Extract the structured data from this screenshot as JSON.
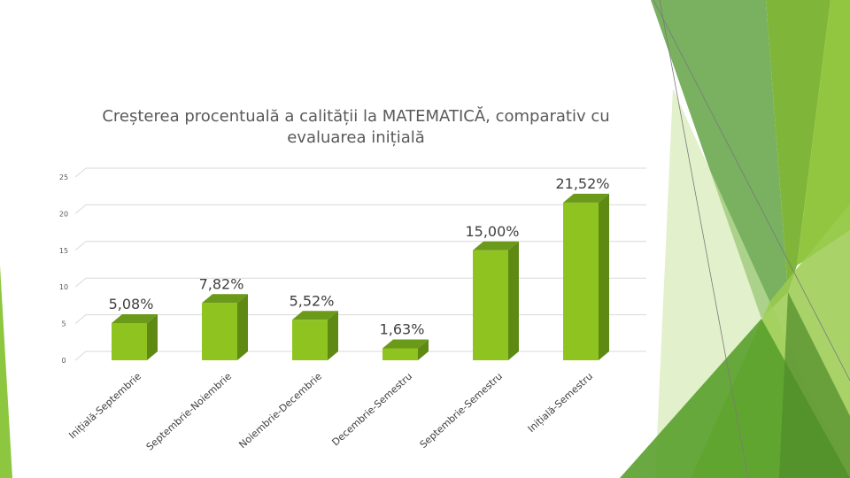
{
  "theme": {
    "accent_light": "#8dc63f",
    "accent_mid": "#6aa84f",
    "accent_dark": "#4e8a2a",
    "bar_front": "#8fc31f",
    "bar_side": "#5e8a14",
    "bar_top": "#6b9a1a"
  },
  "chart_data": {
    "type": "bar",
    "title": "Creșterea procentuală a calității la MATEMATICĂ, comparativ cu evaluarea inițială",
    "title_lines": [
      "Creșterea procentuală a calității la MATEMATICĂ, comparativ cu",
      "evaluarea inițială"
    ],
    "categories": [
      "Inițială-Septembrie",
      "Septembrie-Noiembrie",
      "Noiembrie-Decembrie",
      "Decembrie-Semestru",
      "Septembrie-Semestru",
      "Inițială-Semestru"
    ],
    "values": [
      5.08,
      7.82,
      5.52,
      1.63,
      15.0,
      21.52
    ],
    "data_labels": [
      "5,08%",
      "7,82%",
      "5,52%",
      "1,63%",
      "15,00%",
      "21,52%"
    ],
    "y_ticks": [
      "0",
      "5",
      "10",
      "15",
      "20",
      "25"
    ],
    "ylim": [
      0,
      25
    ],
    "grid": true,
    "legend": "none",
    "style": "3d-column"
  }
}
